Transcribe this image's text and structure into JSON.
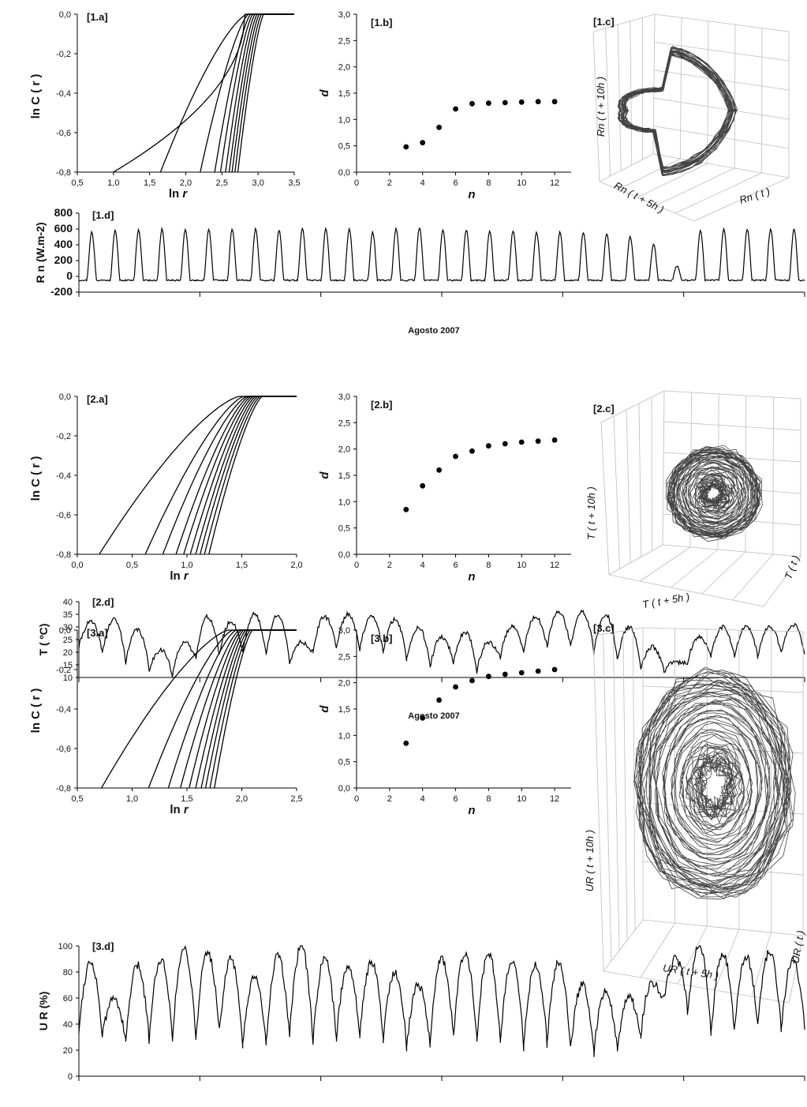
{
  "chart_data": [
    {
      "id": "1.a",
      "type": "line",
      "panel_label": "[1.a]",
      "xlabel": "ln r",
      "ylabel": "ln C ( r )",
      "xlim": [
        0.5,
        3.5
      ],
      "ylim": [
        -0.8,
        0.0
      ],
      "xticks": [
        "0,5",
        "1,0",
        "1,5",
        "2,0",
        "2,5",
        "3,0",
        "3,5"
      ],
      "yticks": [
        "0,0",
        "-0,2",
        "-0,4",
        "-0,6",
        "-0,8"
      ],
      "curves": [
        [
          1.0,
          2.82
        ],
        [
          1.65,
          2.85
        ],
        [
          2.2,
          2.87
        ],
        [
          2.4,
          2.9
        ],
        [
          2.48,
          2.93
        ],
        [
          2.55,
          2.96
        ],
        [
          2.6,
          2.99
        ],
        [
          2.64,
          3.02
        ],
        [
          2.68,
          3.05
        ],
        [
          2.72,
          3.08
        ]
      ]
    },
    {
      "id": "1.b",
      "type": "scatter",
      "panel_label": "[1.b]",
      "xlabel": "n",
      "ylabel": "d",
      "xlim": [
        0,
        13
      ],
      "ylim": [
        0,
        3
      ],
      "xticks": [
        "0",
        "2",
        "4",
        "6",
        "8",
        "10",
        "12"
      ],
      "yticks": [
        "3,0",
        "2,5",
        "2,0",
        "1,5",
        "1,0",
        "0,5",
        "0,0"
      ],
      "x": [
        3,
        4,
        5,
        6,
        7,
        8,
        9,
        10,
        11,
        12
      ],
      "y": [
        0.48,
        0.56,
        0.85,
        1.2,
        1.3,
        1.31,
        1.32,
        1.33,
        1.34,
        1.34
      ]
    },
    {
      "id": "1.c",
      "type": "other",
      "panel_label": "[1.c]",
      "axis_labels": {
        "vertical": "Rn ( t + 10h )",
        "left": "Rn ( t + 5h )",
        "right": "Rn ( t )"
      }
    },
    {
      "id": "1.d",
      "type": "line",
      "panel_label": "[1.d]",
      "ylabel": "R n (W.m-2)",
      "xlabel": "Agosto 2007",
      "ylim": [
        -200,
        800
      ],
      "yticks": [
        "800",
        "600",
        "400",
        "200",
        "0",
        "-200"
      ],
      "daily_peaks": [
        560,
        580,
        590,
        600,
        600,
        600,
        600,
        600,
        590,
        610,
        600,
        600,
        560,
        600,
        620,
        590,
        590,
        580,
        580,
        560,
        560,
        560,
        540,
        500,
        410,
        130,
        580,
        600,
        600,
        600,
        600
      ],
      "night_value": -50
    },
    {
      "id": "2.a",
      "type": "line",
      "panel_label": "[2.a]",
      "xlabel": "ln r",
      "ylabel": "ln C ( r )",
      "xlim": [
        0.0,
        2.0
      ],
      "ylim": [
        -0.8,
        0.0
      ],
      "xticks": [
        "0,0",
        "0,5",
        "1,0",
        "1,5",
        "2,0"
      ],
      "yticks": [
        "0,0",
        "-0,2",
        "-0,4",
        "-0,6",
        "-0,8"
      ],
      "curves": [
        [
          0.2,
          1.48
        ],
        [
          0.62,
          1.52
        ],
        [
          0.78,
          1.55
        ],
        [
          0.9,
          1.57
        ],
        [
          0.97,
          1.59
        ],
        [
          1.03,
          1.61
        ],
        [
          1.08,
          1.63
        ],
        [
          1.12,
          1.65
        ],
        [
          1.16,
          1.67
        ],
        [
          1.2,
          1.69
        ]
      ]
    },
    {
      "id": "2.b",
      "type": "scatter",
      "panel_label": "[2.b]",
      "xlabel": "n",
      "ylabel": "d",
      "xlim": [
        0,
        13
      ],
      "ylim": [
        0,
        3
      ],
      "xticks": [
        "0",
        "2",
        "4",
        "6",
        "8",
        "10",
        "12"
      ],
      "yticks": [
        "3,0",
        "2,5",
        "2,0",
        "1,5",
        "1,0",
        "0,5",
        "0,0"
      ],
      "x": [
        3,
        4,
        5,
        6,
        7,
        8,
        9,
        10,
        11,
        12
      ],
      "y": [
        0.85,
        1.3,
        1.6,
        1.86,
        1.96,
        2.06,
        2.1,
        2.13,
        2.15,
        2.17
      ]
    },
    {
      "id": "2.c",
      "type": "other",
      "panel_label": "[2.c]",
      "axis_labels": {
        "vertical": "T ( t + 10h )",
        "left": "T ( t + 5h )",
        "right": "T ( t )"
      }
    },
    {
      "id": "2.d",
      "type": "line",
      "panel_label": "[2.d]",
      "ylabel": "T ( ºC)",
      "xlabel": "Agosto 2007",
      "ylim": [
        10,
        40
      ],
      "yticks": [
        "40",
        "35",
        "30",
        "25",
        "20",
        "15",
        "10"
      ],
      "daily_max": [
        32,
        33,
        29,
        21,
        24,
        34,
        32,
        35,
        35,
        24,
        34,
        35,
        34,
        33,
        30,
        26,
        28,
        24,
        30,
        34,
        36,
        36,
        35,
        30,
        22,
        16,
        26,
        30,
        30,
        30,
        31
      ],
      "daily_min": [
        22,
        20,
        16,
        13,
        10,
        18,
        19,
        20,
        19,
        15,
        20,
        22,
        21,
        20,
        17,
        14,
        16,
        12,
        18,
        20,
        22,
        22,
        20,
        17,
        14,
        12,
        16,
        18,
        18,
        18,
        20
      ]
    },
    {
      "id": "3.a",
      "type": "line",
      "panel_label": "[3.a]",
      "xlabel": "ln r",
      "ylabel": "ln C ( r )",
      "xlim": [
        0.5,
        2.5
      ],
      "ylim": [
        -0.8,
        0.0
      ],
      "xticks": [
        "0,5",
        "1,0",
        "1,5",
        "2,0",
        "2,5"
      ],
      "yticks": [
        "0,0",
        "-0,2",
        "-0,4",
        "-0,6",
        "-0,8"
      ],
      "curves": [
        [
          0.72,
          1.88
        ],
        [
          1.15,
          1.92
        ],
        [
          1.33,
          1.95
        ],
        [
          1.44,
          1.98
        ],
        [
          1.52,
          2.0
        ],
        [
          1.58,
          2.02
        ],
        [
          1.63,
          2.04
        ],
        [
          1.67,
          2.06
        ],
        [
          1.71,
          2.08
        ],
        [
          1.75,
          2.1
        ]
      ]
    },
    {
      "id": "3.b",
      "type": "scatter",
      "panel_label": "[3.b]",
      "xlabel": "n",
      "ylabel": "d",
      "xlim": [
        0,
        13
      ],
      "ylim": [
        0,
        3
      ],
      "xticks": [
        "0",
        "2",
        "4",
        "6",
        "8",
        "10",
        "12"
      ],
      "yticks": [
        "3,0",
        "2,5",
        "2,0",
        "1,5",
        "1,0",
        "0,5",
        "0,0"
      ],
      "x": [
        3,
        4,
        5,
        6,
        7,
        8,
        9,
        10,
        11,
        12
      ],
      "y": [
        0.85,
        1.33,
        1.67,
        1.92,
        2.04,
        2.12,
        2.16,
        2.19,
        2.22,
        2.25
      ]
    },
    {
      "id": "3.c",
      "type": "other",
      "panel_label": "[3.c]",
      "axis_labels": {
        "vertical": "UR ( t + 10h )",
        "left": "UR ( t + 5h )",
        "right": "UR ( t )"
      }
    },
    {
      "id": "3.d",
      "type": "line",
      "panel_label": "[3.d]",
      "ylabel": "U R (%)",
      "xlabel": "Agosto 2007",
      "ylim": [
        0,
        100
      ],
      "yticks": [
        "100",
        "80",
        "60",
        "40",
        "20",
        "0"
      ],
      "daily_max": [
        88,
        60,
        85,
        90,
        98,
        95,
        90,
        75,
        92,
        100,
        90,
        85,
        88,
        80,
        70,
        90,
        95,
        95,
        90,
        85,
        88,
        70,
        65,
        60,
        72,
        90,
        100,
        95,
        92,
        95,
        90
      ],
      "daily_min": [
        35,
        30,
        25,
        28,
        30,
        28,
        35,
        22,
        25,
        30,
        25,
        28,
        30,
        28,
        22,
        25,
        30,
        28,
        25,
        22,
        25,
        20,
        18,
        20,
        30,
        60,
        50,
        30,
        35,
        38,
        35
      ]
    }
  ]
}
